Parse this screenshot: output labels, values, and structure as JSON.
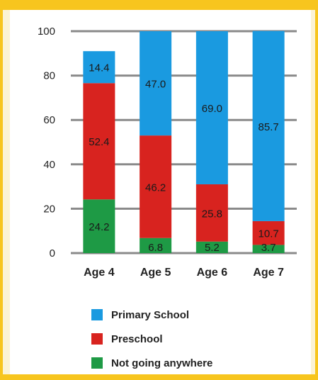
{
  "chart_data": {
    "type": "bar",
    "stacked": true,
    "categories": [
      "Age 4",
      "Age 5",
      "Age 6",
      "Age 7"
    ],
    "series": [
      {
        "name": "Not going anywhere",
        "color": "#1e9a45",
        "values": [
          24.2,
          6.8,
          5.2,
          3.7
        ],
        "labels": [
          "24.2",
          "6.8",
          "5.2",
          "3.7"
        ]
      },
      {
        "name": "Preschool",
        "color": "#d8231f",
        "values": [
          52.4,
          46.2,
          25.8,
          10.7
        ],
        "labels": [
          "52.4",
          "46.2",
          "25.8",
          "10.7"
        ]
      },
      {
        "name": "Primary School",
        "color": "#1a9ae0",
        "values": [
          14.4,
          47.0,
          69.0,
          85.7
        ],
        "labels": [
          "14.4",
          "47.0",
          "69.0",
          "85.7"
        ]
      }
    ],
    "ylim": [
      0,
      100
    ],
    "yticks": [
      "0",
      "20",
      "40",
      "60",
      "80",
      "100"
    ],
    "grid": true,
    "legend_order": [
      "Primary School",
      "Preschool",
      "Not going anywhere"
    ],
    "legend_placement": "bottom"
  }
}
